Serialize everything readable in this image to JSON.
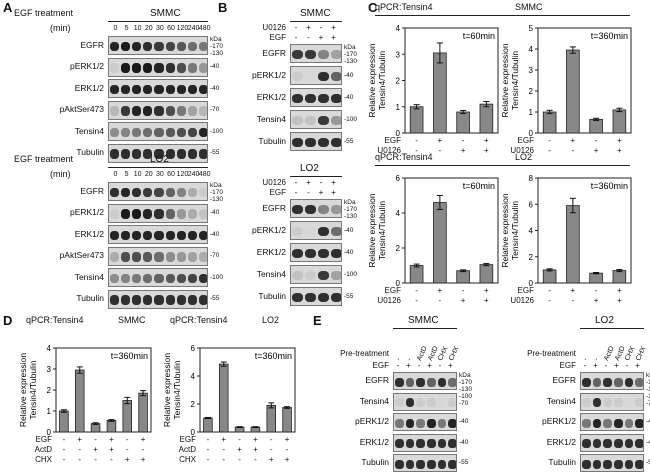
{
  "panels": [
    "A",
    "B",
    "C",
    "D",
    "E"
  ],
  "A": {
    "blocks": [
      {
        "treatment_label": "EGF treatment",
        "cell_line": "SMMC",
        "time_label": "(min)",
        "times": [
          "0",
          "5",
          "10",
          "20",
          "30",
          "60",
          "120",
          "240",
          "480"
        ],
        "rows": [
          {
            "name": "EGFR",
            "mw": [
              "kDa",
              "-170",
              "-130"
            ]
          },
          {
            "name": "pERK1/2",
            "mw": [
              "-40"
            ]
          },
          {
            "name": "ERK1/2",
            "mw": [
              "-40"
            ]
          },
          {
            "name": "pAktSer473",
            "mw": [
              "-70"
            ]
          },
          {
            "name": "Tensin4",
            "mw": [
              "-100"
            ]
          },
          {
            "name": "Tubulin",
            "mw": [
              "-55"
            ]
          }
        ]
      },
      {
        "treatment_label": "EGF treatment",
        "cell_line": "LO2",
        "time_label": "(min)",
        "times": [
          "0",
          "5",
          "10",
          "20",
          "30",
          "60",
          "120",
          "240",
          "480"
        ],
        "rows": [
          {
            "name": "EGFR",
            "mw": [
              "kDa",
              "-170",
              "-130"
            ]
          },
          {
            "name": "pERK1/2",
            "mw": [
              "-40"
            ]
          },
          {
            "name": "ERK1/2",
            "mw": [
              "-40"
            ]
          },
          {
            "name": "pAktSer473",
            "mw": [
              "-70"
            ]
          },
          {
            "name": "Tensin4",
            "mw": [
              "-100"
            ]
          },
          {
            "name": "Tubulin",
            "mw": [
              "-55"
            ]
          }
        ]
      }
    ]
  },
  "B": {
    "blocks": [
      {
        "cell_line": "SMMC",
        "conditions": [
          {
            "name": "U0126",
            "values": [
              "-",
              "+",
              "-",
              "+"
            ]
          },
          {
            "name": "EGF",
            "values": [
              "-",
              "-",
              "+",
              "+"
            ]
          }
        ],
        "rows": [
          {
            "name": "EGFR",
            "mw": [
              "kDa",
              "-170",
              "-130"
            ]
          },
          {
            "name": "pERK1/2",
            "mw": [
              "-40"
            ]
          },
          {
            "name": "ERK1/2",
            "mw": [
              "-40"
            ]
          },
          {
            "name": "Tensin4",
            "mw": [
              "-100"
            ]
          },
          {
            "name": "Tubulin",
            "mw": [
              "-55"
            ]
          }
        ]
      },
      {
        "cell_line": "LO2",
        "conditions": [
          {
            "name": "U0126",
            "values": [
              "-",
              "+",
              "-",
              "+"
            ]
          },
          {
            "name": "EGF",
            "values": [
              "-",
              "-",
              "+",
              "+"
            ]
          }
        ],
        "rows": [
          {
            "name": "EGFR",
            "mw": [
              "kDa",
              "-170",
              "-130"
            ]
          },
          {
            "name": "pERK1/2",
            "mw": [
              "-40"
            ]
          },
          {
            "name": "ERK1/2",
            "mw": [
              "-40"
            ]
          },
          {
            "name": "Tensin4",
            "mw": [
              "-100"
            ]
          },
          {
            "name": "Tubulin",
            "mw": [
              "-55"
            ]
          }
        ]
      }
    ]
  },
  "E": {
    "blocks": [
      {
        "cell_line": "SMMC",
        "pretreatment_label": "Pre-treatment",
        "egf_label": "EGF",
        "pretreatments": [
          "-",
          "-",
          "ActD",
          "ActD",
          "CHX",
          "CHX"
        ],
        "egf": [
          "-",
          "+",
          "-",
          "+",
          "-",
          "+"
        ],
        "rows": [
          {
            "name": "EGFR",
            "mw": [
              "kDa",
              "-170",
              "-130"
            ]
          },
          {
            "name": "Tensin4",
            "mw": [
              "-100",
              "-70"
            ]
          },
          {
            "name": "pERK1/2",
            "mw": [
              "-40"
            ]
          },
          {
            "name": "ERK1/2",
            "mw": [
              "-40"
            ]
          },
          {
            "name": "Tubulin",
            "mw": [
              "-55"
            ]
          }
        ]
      },
      {
        "cell_line": "LO2",
        "pretreatment_label": "Pre-treatment",
        "egf_label": "EGF",
        "pretreatments": [
          "-",
          "-",
          "ActD",
          "ActD",
          "CHX",
          "CHX"
        ],
        "egf": [
          "-",
          "+",
          "-",
          "+",
          "-",
          "+"
        ],
        "rows": [
          {
            "name": "EGFR",
            "mw": [
              "kDa",
              "-170",
              "-130"
            ]
          },
          {
            "name": "Tensin4",
            "mw": [
              "-100",
              "-70"
            ]
          },
          {
            "name": "pERK1/2",
            "mw": [
              "-40"
            ]
          },
          {
            "name": "ERK1/2",
            "mw": [
              "-40"
            ]
          },
          {
            "name": "Tubulin",
            "mw": [
              "-55"
            ]
          }
        ]
      }
    ]
  },
  "chart_data": [
    {
      "panel": "C",
      "id": "C1",
      "type": "bar",
      "title": "qPCR:Tensin4",
      "cell_line": "SMMC",
      "annotation": "t=60min",
      "ylabel": "Relative expression\nTensin4/Tubulin",
      "ylim": [
        0,
        4
      ],
      "yticks": [
        0,
        1,
        2,
        3,
        4
      ],
      "values": [
        1.0,
        3.05,
        0.8,
        1.1
      ],
      "errors": [
        0.08,
        0.38,
        0.06,
        0.1
      ],
      "conditions": [
        {
          "name": "EGF",
          "values": [
            "-",
            "+",
            "-",
            "+"
          ]
        },
        {
          "name": "U0126",
          "values": [
            "-",
            "-",
            "+",
            "+"
          ]
        }
      ],
      "bar_color": "#888888"
    },
    {
      "panel": "C",
      "id": "C2",
      "type": "bar",
      "title": "",
      "cell_line": "",
      "annotation": "t=360min",
      "ylabel": "Relative expression\nTensin4/Tubulin",
      "ylim": [
        0,
        5
      ],
      "yticks": [
        0,
        1,
        2,
        3,
        4,
        5
      ],
      "values": [
        1.0,
        3.95,
        0.65,
        1.1
      ],
      "errors": [
        0.08,
        0.15,
        0.05,
        0.08
      ],
      "conditions": [
        {
          "name": "EGF",
          "values": [
            "-",
            "+",
            "-",
            "+"
          ]
        },
        {
          "name": "U0126",
          "values": [
            "-",
            "-",
            "+",
            "+"
          ]
        }
      ],
      "bar_color": "#888888"
    },
    {
      "panel": "C",
      "id": "C3",
      "type": "bar",
      "title": "qPCR:Tensin4",
      "cell_line": "LO2",
      "annotation": "t=60min",
      "ylabel": "Relative expression\nTensin4/Tubulin",
      "ylim": [
        0,
        6
      ],
      "yticks": [
        0,
        2,
        4,
        6
      ],
      "values": [
        1.0,
        4.6,
        0.7,
        1.05
      ],
      "errors": [
        0.08,
        0.4,
        0.05,
        0.06
      ],
      "conditions": [
        {
          "name": "EGF",
          "values": [
            "-",
            "+",
            "-",
            "+"
          ]
        },
        {
          "name": "U0126",
          "values": [
            "-",
            "-",
            "+",
            "+"
          ]
        }
      ],
      "bar_color": "#888888"
    },
    {
      "panel": "C",
      "id": "C4",
      "type": "bar",
      "title": "",
      "cell_line": "",
      "annotation": "t=360min",
      "ylabel": "Relative expression\nTensin4/Tubulin",
      "ylim": [
        0,
        8
      ],
      "yticks": [
        0,
        2,
        4,
        6,
        8
      ],
      "values": [
        1.0,
        5.9,
        0.75,
        0.95
      ],
      "errors": [
        0.08,
        0.55,
        0.05,
        0.08
      ],
      "conditions": [
        {
          "name": "EGF",
          "values": [
            "-",
            "+",
            "-",
            "+"
          ]
        },
        {
          "name": "U0126",
          "values": [
            "-",
            "-",
            "+",
            "+"
          ]
        }
      ],
      "bar_color": "#888888"
    },
    {
      "panel": "D",
      "id": "D1",
      "type": "bar",
      "title": "qPCR:Tensin4",
      "cell_line": "SMMC",
      "annotation": "t=360min",
      "ylabel": "Relative expression\nTensin4/Tubulin",
      "ylim": [
        0,
        4
      ],
      "yticks": [
        0,
        1,
        2,
        3,
        4
      ],
      "values": [
        1.0,
        2.95,
        0.4,
        0.55,
        1.5,
        1.85
      ],
      "errors": [
        0.06,
        0.15,
        0.04,
        0.04,
        0.15,
        0.12
      ],
      "conditions": [
        {
          "name": "EGF",
          "values": [
            "-",
            "+",
            "-",
            "+",
            "-",
            "+"
          ]
        },
        {
          "name": "ActD",
          "values": [
            "-",
            "-",
            "+",
            "+",
            "-",
            "-"
          ]
        },
        {
          "name": "CHX",
          "values": [
            "-",
            "-",
            "-",
            "-",
            "+",
            "+"
          ]
        }
      ],
      "bar_color": "#888888"
    },
    {
      "panel": "D",
      "id": "D2",
      "type": "bar",
      "title": "qPCR:Tensin4",
      "cell_line": "LO2",
      "annotation": "t=360min",
      "ylabel": "Relative expression\nTensin4/Tubulin",
      "ylim": [
        0,
        6
      ],
      "yticks": [
        0,
        2,
        4,
        6
      ],
      "values": [
        1.0,
        4.85,
        0.35,
        0.35,
        1.9,
        1.75
      ],
      "errors": [
        0.04,
        0.15,
        0.03,
        0.03,
        0.18,
        0.06
      ],
      "conditions": [
        {
          "name": "EGF",
          "values": [
            "-",
            "+",
            "-",
            "+",
            "-",
            "+"
          ]
        },
        {
          "name": "ActD",
          "values": [
            "-",
            "-",
            "+",
            "+",
            "-",
            "-"
          ]
        },
        {
          "name": "CHX",
          "values": [
            "-",
            "-",
            "-",
            "-",
            "+",
            "+"
          ]
        }
      ],
      "bar_color": "#888888"
    }
  ]
}
